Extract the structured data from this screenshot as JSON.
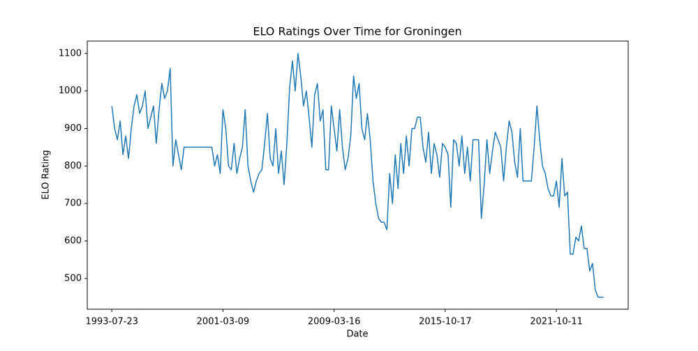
{
  "chart_data": {
    "type": "line",
    "title": "ELO Ratings Over Time for Groningen",
    "x_label": "Date",
    "y_label": "ELO Rating",
    "color": "#1f77b4",
    "categories": [
      "1993-07-23",
      null,
      null,
      null,
      null,
      null,
      null,
      null,
      null,
      null,
      null,
      null,
      null,
      null,
      null,
      null,
      null,
      null,
      null,
      null,
      null,
      null,
      null,
      null,
      null,
      null,
      null,
      null,
      null,
      null,
      null,
      null,
      null,
      null,
      null,
      null,
      null,
      null,
      null,
      null,
      "2001-03-09",
      null,
      null,
      null,
      null,
      null,
      null,
      null,
      null,
      null,
      null,
      null,
      null,
      null,
      null,
      null,
      null,
      null,
      null,
      null,
      null,
      null,
      null,
      null,
      null,
      null,
      null,
      null,
      null,
      null,
      null,
      null,
      null,
      null,
      null,
      null,
      null,
      null,
      null,
      null,
      "2009-03-16",
      null,
      null,
      null,
      null,
      null,
      null,
      null,
      null,
      null,
      null,
      null,
      null,
      null,
      null,
      null,
      null,
      null,
      null,
      null,
      null,
      null,
      null,
      null,
      null,
      null,
      null,
      null,
      null,
      null,
      null,
      null,
      null,
      null,
      null,
      null,
      null,
      null,
      null,
      null,
      "2015-10-17",
      null,
      null,
      null,
      null,
      null,
      null,
      null,
      null,
      null,
      null,
      null,
      null,
      null,
      null,
      null,
      null,
      null,
      null,
      null,
      null,
      null,
      null,
      null,
      null,
      null,
      null,
      null,
      null,
      null,
      null,
      null,
      null,
      null,
      null,
      null,
      null,
      null,
      null,
      null,
      "2021-10-11",
      null,
      null,
      null,
      null,
      null,
      null,
      null,
      null,
      null,
      null,
      null,
      null,
      null,
      null,
      null,
      null,
      null
    ],
    "values": [
      960,
      900,
      870,
      920,
      830,
      880,
      820,
      900,
      960,
      990,
      940,
      960,
      1000,
      900,
      930,
      960,
      860,
      950,
      1020,
      980,
      1000,
      1060,
      800,
      870,
      830,
      790,
      850,
      850,
      850,
      850,
      850,
      850,
      850,
      850,
      850,
      850,
      850,
      800,
      830,
      780,
      950,
      900,
      800,
      790,
      860,
      780,
      820,
      850,
      950,
      800,
      760,
      730,
      760,
      780,
      790,
      860,
      940,
      820,
      800,
      900,
      780,
      840,
      750,
      860,
      1010,
      1080,
      1000,
      1100,
      1040,
      960,
      1000,
      930,
      850,
      990,
      1020,
      920,
      950,
      790,
      790,
      960,
      900,
      840,
      950,
      850,
      790,
      820,
      880,
      1040,
      980,
      1020,
      900,
      870,
      940,
      870,
      760,
      700,
      660,
      650,
      650,
      630,
      780,
      700,
      830,
      740,
      860,
      780,
      880,
      800,
      900,
      900,
      930,
      930,
      850,
      810,
      890,
      780,
      860,
      830,
      770,
      860,
      850,
      830,
      690,
      870,
      860,
      800,
      880,
      780,
      850,
      760,
      870,
      870,
      870,
      660,
      750,
      870,
      780,
      840,
      890,
      870,
      850,
      760,
      850,
      920,
      890,
      810,
      770,
      900,
      760,
      760,
      760,
      760,
      850,
      960,
      870,
      800,
      780,
      740,
      720,
      720,
      760,
      690,
      820,
      720,
      730,
      565,
      565,
      610,
      600,
      640,
      580,
      580,
      520,
      540,
      470,
      450,
      450,
      450
    ],
    "ylim": [
      418,
      1133
    ],
    "yticks": [
      500,
      600,
      700,
      800,
      900,
      1000,
      1100
    ]
  }
}
